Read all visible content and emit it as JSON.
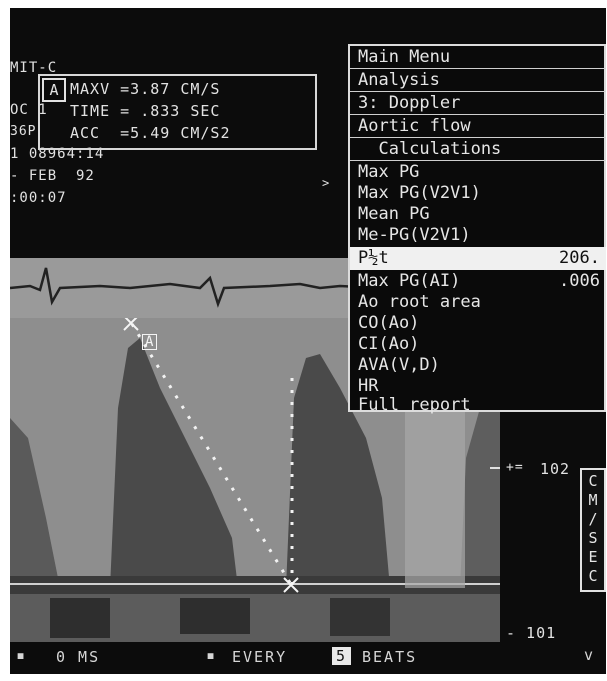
{
  "header": {
    "left_labels": [
      "MIT-C",
      "OC 1",
      "36P",
      "1 08964:14",
      "- FEB  92",
      ":00:07"
    ],
    "measurement": {
      "tag": "A",
      "lines": [
        "MAXV =3.87 CM/S",
        "TIME = .833 SEC",
        "ACC  =5.49 CM/S2"
      ]
    }
  },
  "menu": {
    "items": [
      {
        "label": "Main Menu",
        "value": ""
      },
      {
        "label": "Analysis",
        "value": ""
      },
      {
        "label": "3: Doppler",
        "value": ""
      },
      {
        "label": "Aortic flow",
        "value": ""
      },
      {
        "label": "  Calculations",
        "value": ""
      },
      {
        "label": "Max PG",
        "value": ""
      },
      {
        "label": "Max PG(V2V1)",
        "value": ""
      },
      {
        "label": "Mean PG",
        "value": ""
      },
      {
        "label": "Me-PG(V2V1)",
        "value": ""
      },
      {
        "label": "P½t",
        "value": "206."
      },
      {
        "label": "Max PG(AI)",
        "value": ".006"
      },
      {
        "label": "Ao root area",
        "value": ""
      },
      {
        "label": "CO(Ao)",
        "value": ""
      },
      {
        "label": "CI(Ao)",
        "value": ""
      },
      {
        "label": "AVA(V,D)",
        "value": ""
      },
      {
        "label": "HR",
        "value": ""
      },
      {
        "label": "Full report",
        "value": ""
      }
    ]
  },
  "scale": {
    "top_value": "102",
    "bottom_value": "- 101",
    "units": [
      "C",
      "M",
      "/",
      "S",
      "E",
      "C"
    ]
  },
  "marker": "A",
  "bottom": {
    "left": "0 MS",
    "every": "EVERY",
    "beats_num": "5",
    "beats": "BEATS",
    "arrow": "v"
  },
  "colors": {
    "screen": "#0c0c0c",
    "text": "#e2e2e2",
    "highlight": "#f0f0f0"
  }
}
